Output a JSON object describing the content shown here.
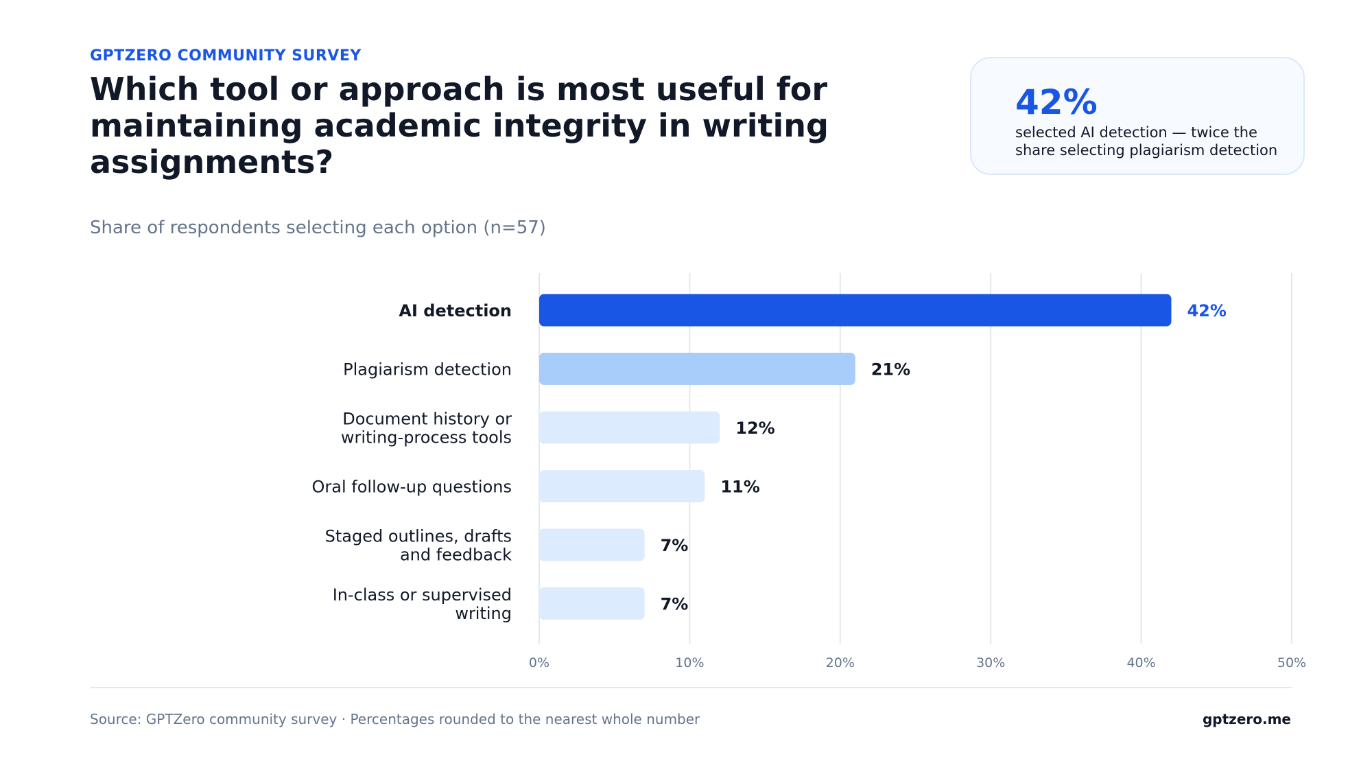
{
  "header": {
    "eyebrow": "GPTZERO COMMUNITY SURVEY",
    "title": "Which tool or approach is most useful for maintaining academic integrity in writing assignments?",
    "subtitle": "Share of respondents selecting each option (n=57)"
  },
  "callout": {
    "value": "42%",
    "text": "selected AI detection — twice the share selecting plagiarism detection"
  },
  "footer": {
    "source": "Source: GPTZero community survey · Percentages rounded to the nearest whole number",
    "brand": "gptzero.me"
  },
  "colors": {
    "accent": "#1a56e6",
    "secondary": "#a9cdfa",
    "tertiary": "#dcebfd",
    "text": "#111827",
    "muted": "#64748b",
    "grid": "#e5e7eb"
  },
  "chart_data": {
    "type": "bar",
    "orientation": "horizontal",
    "categories": [
      [
        "AI detection"
      ],
      [
        "Plagiarism detection"
      ],
      [
        "Document history or",
        "writing-process tools"
      ],
      [
        "Oral follow-up questions"
      ],
      [
        "Staged outlines, drafts",
        "and feedback"
      ],
      [
        "In-class or supervised",
        "writing"
      ]
    ],
    "values": [
      42,
      21,
      12,
      11,
      7,
      7
    ],
    "value_labels": [
      "42%",
      "21%",
      "12%",
      "11%",
      "7%",
      "7%"
    ],
    "xlim": [
      0,
      50
    ],
    "xticks": [
      0,
      10,
      20,
      30,
      40,
      50
    ],
    "xtick_labels": [
      "0%",
      "10%",
      "20%",
      "30%",
      "40%",
      "50%"
    ],
    "grid": true,
    "highlight_index": 0
  }
}
